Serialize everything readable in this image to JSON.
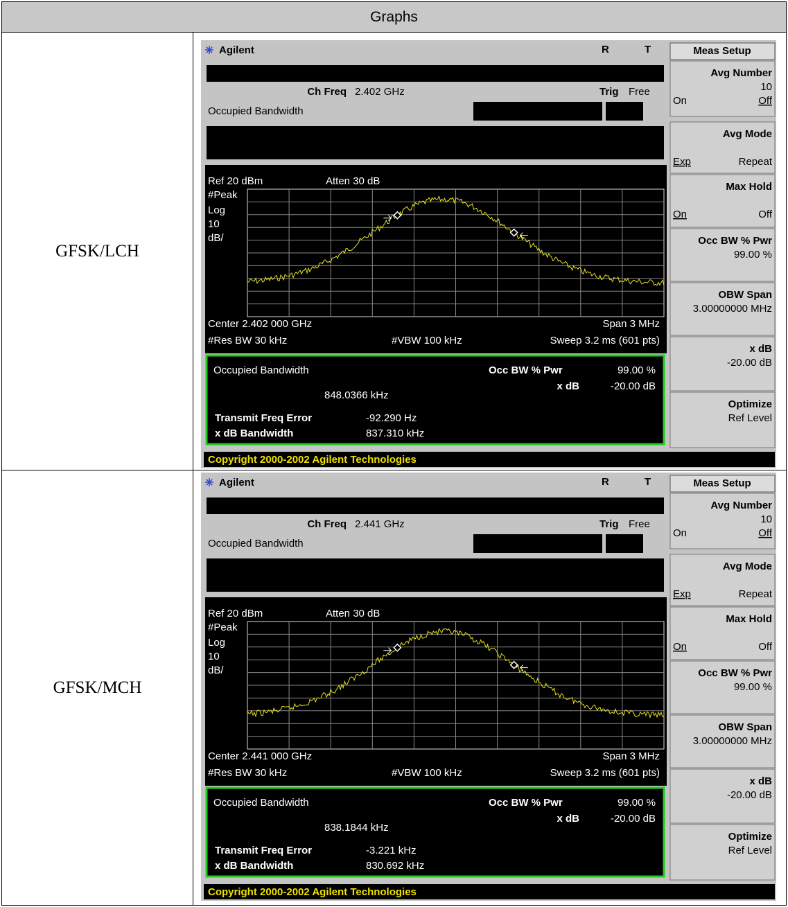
{
  "header": {
    "title": "Graphs"
  },
  "rows": [
    {
      "label": "GFSK/LCH",
      "screen": {
        "brand": "Agilent",
        "status": [
          "R",
          "T"
        ],
        "menu_title": "Meas Setup",
        "ch_freq_label": "Ch Freq",
        "ch_freq": "2.402 GHz",
        "trig_label": "Trig",
        "trig": "Free",
        "meas_name": "Occupied Bandwidth",
        "ref": "Ref 20 dBm",
        "atten": "Atten 30 dB",
        "scale_labels": [
          "#Peak",
          "Log",
          "10",
          "dB/"
        ],
        "center": "Center 2.402 000 GHz",
        "span": "Span 3 MHz",
        "res_bw": "#Res BW 30 kHz",
        "vbw": "#VBW 100 kHz",
        "sweep": "Sweep 3.2 ms (601 pts)",
        "result_title": "Occupied Bandwidth",
        "result_value": "848.0366 kHz",
        "occ_pwr_label": "Occ BW % Pwr",
        "occ_pwr": "99.00 %",
        "xdb_label": "x dB",
        "xdb": "-20.00 dB",
        "tfe_label": "Transmit Freq Error",
        "tfe": "-92.290 Hz",
        "xdb_bw_label": "x dB Bandwidth",
        "xdb_bw": "837.310 kHz",
        "copyright": "Copyright 2000-2002 Agilent Technologies",
        "softkeys": [
          {
            "title": "Avg Number",
            "value": "10",
            "left": "On",
            "right": "Off"
          },
          {
            "title": "Avg Mode",
            "left": "Exp",
            "right": "Repeat"
          },
          {
            "title": "Max Hold",
            "left": "On",
            "right": "Off"
          },
          {
            "title": "Occ BW % Pwr",
            "value": "99.00 %"
          },
          {
            "title": "OBW Span",
            "value": "3.00000000 MHz"
          },
          {
            "title": "x dB",
            "value": "-20.00 dB"
          },
          {
            "title": "Optimize",
            "value": "Ref Level"
          }
        ]
      }
    },
    {
      "label": "GFSK/MCH",
      "screen": {
        "brand": "Agilent",
        "status": [
          "R",
          "T"
        ],
        "menu_title": "Meas Setup",
        "ch_freq_label": "Ch Freq",
        "ch_freq": "2.441 GHz",
        "trig_label": "Trig",
        "trig": "Free",
        "meas_name": "Occupied Bandwidth",
        "ref": "Ref 20 dBm",
        "atten": "Atten 30 dB",
        "scale_labels": [
          "#Peak",
          "Log",
          "10",
          "dB/"
        ],
        "center": "Center 2.441 000 GHz",
        "span": "Span 3 MHz",
        "res_bw": "#Res BW 30 kHz",
        "vbw": "#VBW 100 kHz",
        "sweep": "Sweep 3.2 ms (601 pts)",
        "result_title": "Occupied Bandwidth",
        "result_value": "838.1844 kHz",
        "occ_pwr_label": "Occ BW % Pwr",
        "occ_pwr": "99.00 %",
        "xdb_label": "x dB",
        "xdb": "-20.00 dB",
        "tfe_label": "Transmit Freq Error",
        "tfe": "-3.221 kHz",
        "xdb_bw_label": "x dB Bandwidth",
        "xdb_bw": "830.692 kHz",
        "copyright": "Copyright 2000-2002 Agilent Technologies",
        "softkeys": [
          {
            "title": "Avg Number",
            "value": "10",
            "left": "On",
            "right": "Off"
          },
          {
            "title": "Avg Mode",
            "left": "Exp",
            "right": "Repeat"
          },
          {
            "title": "Max Hold",
            "left": "On",
            "right": "Off"
          },
          {
            "title": "Occ BW % Pwr",
            "value": "99.00 %"
          },
          {
            "title": "OBW Span",
            "value": "3.00000000 MHz"
          },
          {
            "title": "x dB",
            "value": "-20.00 dB"
          },
          {
            "title": "Optimize",
            "value": "Ref Level"
          }
        ]
      }
    }
  ]
}
